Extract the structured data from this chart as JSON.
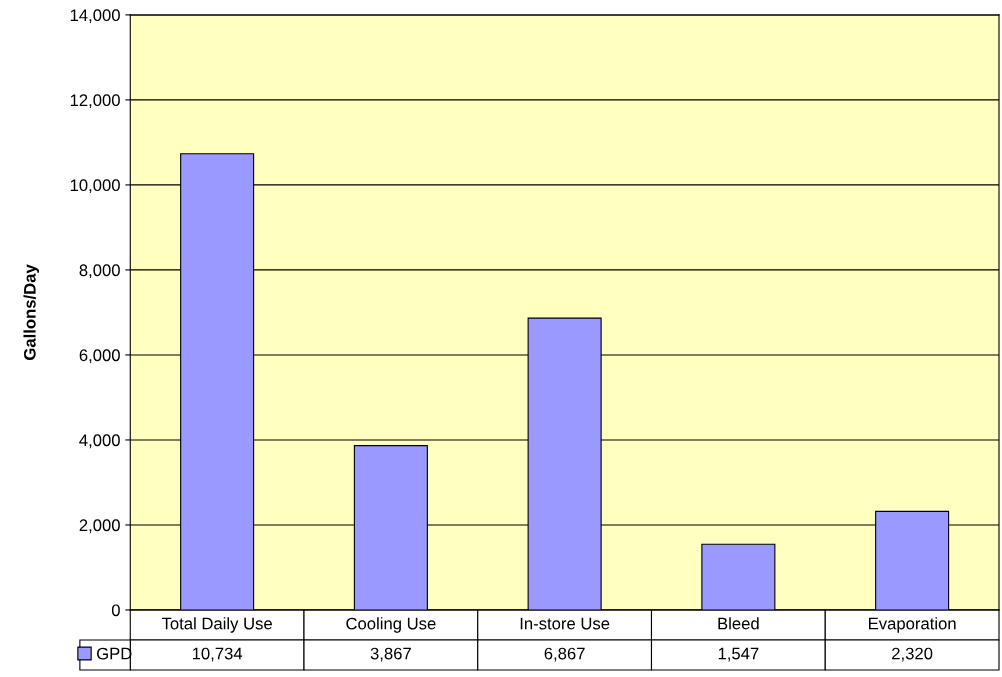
{
  "chart_data": {
    "type": "bar",
    "ylabel": "Gallons/Day",
    "categories": [
      "Total Daily Use",
      "Cooling Use",
      "In-store Use",
      "Bleed",
      "Evaporation"
    ],
    "series": [
      {
        "name": "GPD",
        "color": "#9999ff",
        "values": [
          10734,
          3867,
          6867,
          1547,
          2320
        ],
        "value_labels": [
          "10,734",
          "3,867",
          "6,867",
          "1,547",
          "2,320"
        ]
      }
    ],
    "ylim": [
      0,
      14000
    ],
    "yticks": [
      0,
      {
        "value": 2000,
        "label": "2,000"
      },
      {
        "value": 4000,
        "label": "4,000"
      },
      {
        "value": 6000,
        "label": "6,000"
      },
      {
        "value": 8000,
        "label": "8,000"
      },
      {
        "value": 10000,
        "label": "10,000"
      },
      {
        "value": 12000,
        "label": "12,000"
      },
      {
        "value": 14000,
        "label": "14,000"
      }
    ],
    "grid": "y",
    "legend": "bottom left"
  }
}
